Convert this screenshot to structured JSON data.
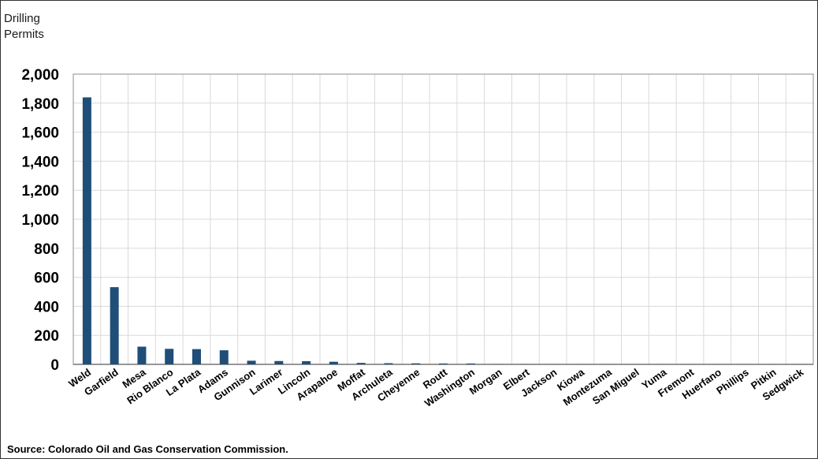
{
  "chart_data": {
    "type": "bar",
    "title": "",
    "ylabel": "Drilling Permits",
    "ylabel_lines": [
      "Drilling",
      "Permits"
    ],
    "xlabel": "",
    "categories": [
      "Weld",
      "Garfield",
      "Mesa",
      "Rio Blanco",
      "La Plata",
      "Adams",
      "Gunnison",
      "Larimer",
      "Lincoln",
      "Arapahoe",
      "Moffat",
      "Archuleta",
      "Cheyenne",
      "Routt",
      "Washington",
      "Morgan",
      "Elbert",
      "Jackson",
      "Kiowa",
      "Montezuma",
      "San Miguel",
      "Yuma",
      "Fremont",
      "Huerfano",
      "Phillips",
      "Pitkin",
      "Sedgwick"
    ],
    "values": [
      1840,
      532,
      122,
      107,
      105,
      97,
      25,
      23,
      22,
      18,
      10,
      8,
      7,
      6,
      6,
      2,
      2,
      1,
      1,
      1,
      1,
      1,
      1,
      1,
      1,
      1,
      1
    ],
    "ylim": [
      0,
      2000
    ],
    "yticks": [
      0,
      200,
      400,
      600,
      800,
      1000,
      1200,
      1400,
      1600,
      1800,
      2000
    ],
    "ytick_labels": [
      "0",
      "200",
      "400",
      "600",
      "800",
      "1,000",
      "1,200",
      "1,400",
      "1,600",
      "1,800",
      "2,000"
    ],
    "grid": true,
    "bar_color": "#1f4e79",
    "gridline_color": "#d9d9d9",
    "source": "Source: Colorado Oil and Gas Conservation Commission."
  }
}
